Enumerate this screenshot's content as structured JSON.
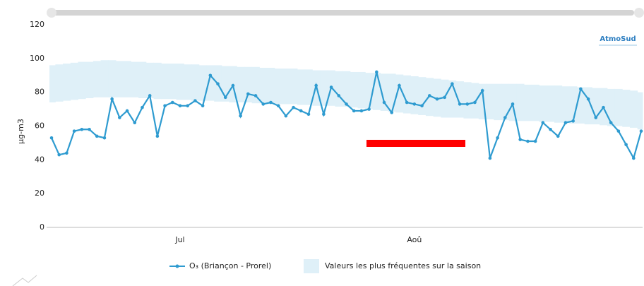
{
  "chart_data": {
    "type": "line",
    "logo": "AtmoSud",
    "y_label": "µg-m3",
    "categories": [
      null,
      null,
      null,
      null,
      null,
      null,
      null,
      null,
      null,
      null,
      null,
      null,
      null,
      null,
      null,
      null,
      null,
      "Jul",
      null,
      null,
      null,
      null,
      null,
      null,
      null,
      null,
      null,
      null,
      null,
      null,
      null,
      null,
      null,
      null,
      null,
      null,
      null,
      null,
      null,
      null,
      null,
      null,
      null,
      null,
      null,
      null,
      null,
      null,
      "Aoû",
      null,
      null,
      null,
      null,
      null,
      null,
      null,
      null,
      null,
      null,
      null,
      null,
      null,
      null,
      null,
      null,
      null,
      null,
      null,
      null,
      null,
      null,
      null,
      null,
      null,
      null,
      null,
      null,
      null,
      null
    ],
    "series": [
      {
        "name": "O₃ (Briançon - Prorel)",
        "color": "#2e9bd0",
        "values": [
          53,
          43,
          44,
          57,
          58,
          58,
          54,
          53,
          76,
          65,
          69,
          62,
          71,
          78,
          54,
          72,
          74,
          72,
          72,
          75,
          72,
          90,
          85,
          77,
          84,
          66,
          79,
          78,
          73,
          74,
          72,
          66,
          71,
          69,
          67,
          84,
          67,
          83,
          78,
          73,
          69,
          69,
          70,
          92,
          74,
          68,
          84,
          74,
          73,
          72,
          78,
          76,
          77,
          85,
          73,
          73,
          74,
          81,
          41,
          53,
          65,
          73,
          52,
          51,
          51,
          62,
          58,
          54,
          62,
          63,
          82,
          76,
          65,
          71,
          62,
          57,
          49,
          41,
          57
        ]
      }
    ],
    "band": {
      "name": "Valeurs les plus fréquentes sur la saison",
      "color": "#dff0f8",
      "upper": [
        96,
        96.5,
        97,
        97.5,
        98,
        98,
        98.5,
        99,
        99,
        98.5,
        98.5,
        98,
        98,
        97.5,
        97.5,
        97,
        97,
        97,
        96.5,
        96.5,
        96,
        96,
        96,
        95.5,
        95.5,
        95,
        95,
        95,
        94.5,
        94.5,
        94,
        94,
        94,
        93.5,
        93.5,
        93,
        93,
        93,
        92.5,
        92.5,
        92,
        92,
        91.5,
        91.5,
        91,
        91,
        90.5,
        90,
        89.5,
        89,
        88.5,
        88,
        87.5,
        87,
        86.5,
        86,
        85.5,
        85,
        85,
        85,
        85,
        85,
        85,
        84.5,
        84.5,
        84,
        84,
        84,
        83.5,
        83.5,
        83,
        83,
        82.5,
        82.5,
        82,
        82,
        81.5,
        81,
        80
      ],
      "lower": [
        74,
        74.5,
        75,
        75.5,
        76,
        76.5,
        77,
        77,
        77,
        77,
        77,
        77,
        76.5,
        76.5,
        76,
        76,
        76,
        75.5,
        75.5,
        75,
        75,
        75,
        74.5,
        74.5,
        74,
        74,
        74,
        73.5,
        73.5,
        73,
        73,
        73,
        73,
        72.5,
        72.5,
        72,
        72,
        72,
        71.5,
        71.5,
        71,
        70.5,
        70,
        69.5,
        69,
        68.5,
        68,
        67.5,
        67,
        66.5,
        66,
        65.5,
        65,
        65,
        65,
        64.5,
        64.5,
        64,
        64,
        63.5,
        63.5,
        63,
        63,
        63,
        63,
        62.5,
        62.5,
        62,
        62,
        61.5,
        61.5,
        61,
        61,
        60.5,
        60,
        60,
        59.5,
        59,
        58
      ]
    },
    "ylim": [
      0,
      120
    ],
    "yticks": [
      0,
      20,
      40,
      60,
      80,
      100,
      120
    ],
    "grid": false
  }
}
